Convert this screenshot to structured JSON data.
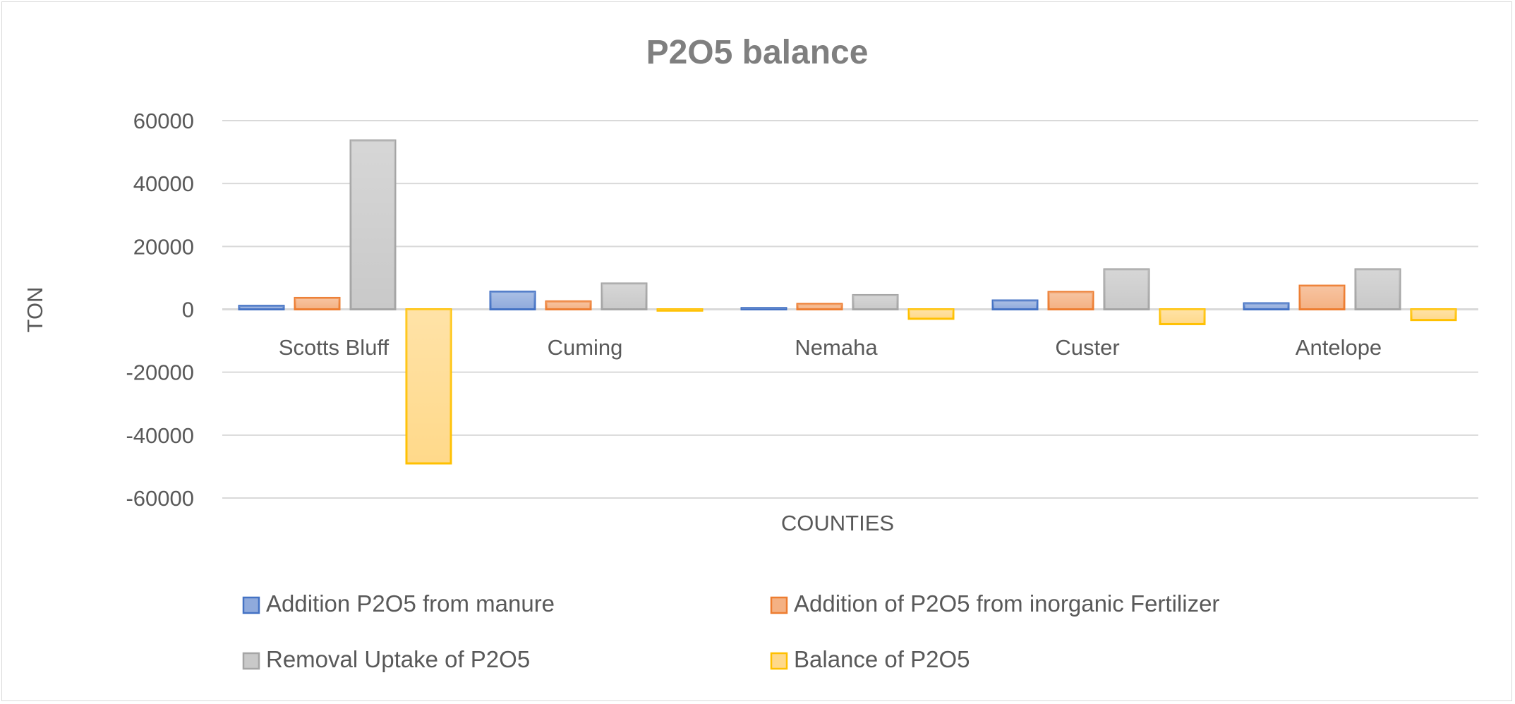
{
  "chart_data": {
    "type": "bar",
    "title": "P2O5 balance",
    "xlabel": "COUNTIES",
    "ylabel": "TON",
    "ylim": [
      -60000,
      60000
    ],
    "yticks": [
      60000,
      40000,
      20000,
      0,
      -20000,
      -40000,
      -60000
    ],
    "grid": true,
    "legend_position": "bottom",
    "categories": [
      "Scotts Bluff",
      "Cuming",
      "Nemaha",
      "Custer",
      "Antelope"
    ],
    "series": [
      {
        "name": "Addition P2O5 from manure",
        "fill": "#8faadc",
        "stroke": "#4472c4",
        "values": [
          1100,
          5600,
          400,
          2800,
          1900
        ]
      },
      {
        "name": "Addition of P2O5 from inorganic Fertilizer",
        "fill": "#f4b183",
        "stroke": "#ed7d31",
        "values": [
          3600,
          2500,
          1700,
          5500,
          7500
        ]
      },
      {
        "name": "Removal Uptake of P2O5",
        "fill": "#c9c9c9",
        "stroke": "#a5a5a5",
        "values": [
          53700,
          8200,
          4500,
          12700,
          12700
        ]
      },
      {
        "name": "Balance of P2O5",
        "fill": "#ffd98a",
        "stroke": "#ffc000",
        "values": [
          -49000,
          -400,
          -3000,
          -4700,
          -3400
        ]
      }
    ]
  }
}
